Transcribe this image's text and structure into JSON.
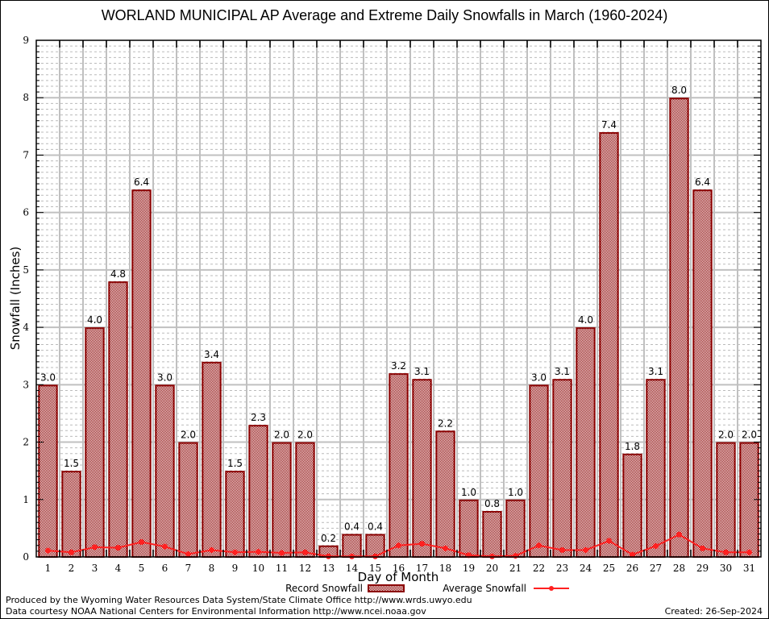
{
  "chart_data": {
    "type": "bar",
    "title": "WORLAND MUNICIPAL AP Average and Extreme Daily Snowfalls in March (1960-2024)",
    "xlabel": "Day of Month",
    "ylabel": "Snowfall (Inches)",
    "ylim": [
      0,
      9
    ],
    "yticks": [
      0,
      1,
      2,
      3,
      4,
      5,
      6,
      7,
      8,
      9
    ],
    "minor_grid_step": 0.1,
    "grid": true,
    "categories": [
      "1",
      "2",
      "3",
      "4",
      "5",
      "6",
      "7",
      "8",
      "9",
      "10",
      "11",
      "12",
      "13",
      "14",
      "15",
      "16",
      "17",
      "18",
      "19",
      "20",
      "21",
      "22",
      "23",
      "24",
      "25",
      "26",
      "27",
      "28",
      "29",
      "30",
      "31"
    ],
    "series": [
      {
        "name": "Record Snowfall",
        "type": "bar",
        "color": "#8b0000",
        "values": [
          3.0,
          1.5,
          4.0,
          4.8,
          6.4,
          3.0,
          2.0,
          3.4,
          1.5,
          2.3,
          2.0,
          2.0,
          0.2,
          0.4,
          0.4,
          3.2,
          3.1,
          2.2,
          1.0,
          0.8,
          1.0,
          3.0,
          3.1,
          4.0,
          7.4,
          1.8,
          3.1,
          8.0,
          6.4,
          2.0,
          2.0
        ],
        "labels": [
          "3.0",
          "1.5",
          "4.0",
          "4.8",
          "6.4",
          "3.0",
          "2.0",
          "3.4",
          "1.5",
          "2.3",
          "2.0",
          "2.0",
          "0.2",
          "0.4",
          "0.4",
          "3.2",
          "3.1",
          "2.2",
          "1.0",
          "0.8",
          "1.0",
          "3.0",
          "3.1",
          "4.0",
          "7.4",
          "1.8",
          "3.1",
          "8.0",
          "6.4",
          "2.0",
          "2.0"
        ]
      },
      {
        "name": "Average Snowfall",
        "type": "line",
        "color": "#ff2020",
        "values": [
          0.11,
          0.08,
          0.17,
          0.16,
          0.26,
          0.18,
          0.05,
          0.12,
          0.08,
          0.09,
          0.07,
          0.08,
          0.01,
          0.01,
          0.01,
          0.2,
          0.23,
          0.15,
          0.03,
          0.01,
          0.02,
          0.2,
          0.12,
          0.12,
          0.28,
          0.04,
          0.19,
          0.39,
          0.15,
          0.08,
          0.08
        ]
      }
    ],
    "legend_position": "bottom-center"
  },
  "footer": {
    "line1": "Produced by the Wyoming Water Resources Data System/State Climate Office http://www.wrds.uwyo.edu",
    "line2": "Data courtesy NOAA National Centers for Environmental Information http://www.ncei.noaa.gov",
    "created": "Created:  26-Sep-2024"
  }
}
